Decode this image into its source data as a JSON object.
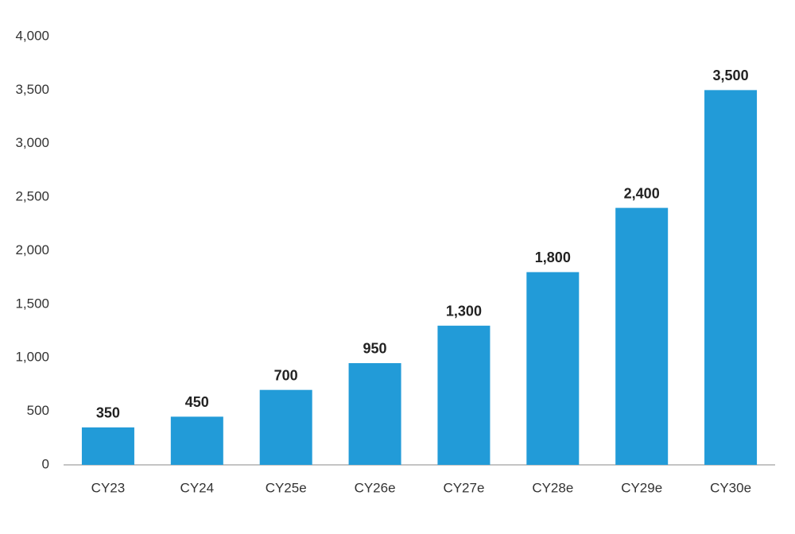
{
  "chart_data": {
    "type": "bar",
    "categories": [
      "CY23",
      "CY24",
      "CY25e",
      "CY26e",
      "CY27e",
      "CY28e",
      "CY29e",
      "CY30e"
    ],
    "values": [
      350,
      450,
      700,
      950,
      1300,
      1800,
      2400,
      3500
    ],
    "value_labels": [
      "350",
      "450",
      "700",
      "950",
      "1,300",
      "1,800",
      "2,400",
      "3,500"
    ],
    "color": "#229bd8",
    "ylim": [
      0,
      4000
    ],
    "yticks": [
      0,
      500,
      {
        "value": 1000,
        "label": "1,000"
      },
      {
        "value": 1500,
        "label": "1,500"
      },
      {
        "value": 2000,
        "label": "2,000"
      },
      {
        "value": 2500,
        "label": "2,500"
      },
      {
        "value": 3000,
        "label": "3,000"
      },
      {
        "value": 3500,
        "label": "3,500"
      },
      {
        "value": 4000,
        "label": "4,000"
      }
    ],
    "grid": false
  }
}
